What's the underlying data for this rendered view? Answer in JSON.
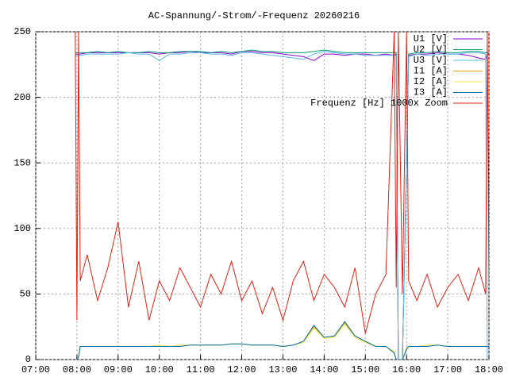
{
  "chart_data": {
    "type": "line",
    "title": "AC-Spannung/-Strom/-Frequenz 20260216",
    "x": [
      7.96,
      8.0,
      8.04,
      8.08,
      8.25,
      8.5,
      8.75,
      9.0,
      9.25,
      9.5,
      9.75,
      10.0,
      10.25,
      10.5,
      10.75,
      11.0,
      11.25,
      11.5,
      11.75,
      12.0,
      12.25,
      12.5,
      12.75,
      13.0,
      13.25,
      13.5,
      13.75,
      14.0,
      14.25,
      14.5,
      14.75,
      15.0,
      15.25,
      15.5,
      15.7,
      15.75,
      15.8,
      15.9,
      16.0,
      16.05,
      16.25,
      16.5,
      16.75,
      17.0,
      17.25,
      17.5,
      17.75,
      17.92,
      17.96,
      18.0
    ],
    "xlim": [
      7,
      18
    ],
    "xticks": [
      {
        "value": 7,
        "label": "07:00"
      },
      {
        "value": 8,
        "label": "08:00"
      },
      {
        "value": 9,
        "label": "09:00"
      },
      {
        "value": 10,
        "label": "10:00"
      },
      {
        "value": 11,
        "label": "11:00"
      },
      {
        "value": 12,
        "label": "12:00"
      },
      {
        "value": 13,
        "label": "13:00"
      },
      {
        "value": 14,
        "label": "14:00"
      },
      {
        "value": 15,
        "label": "15:00"
      },
      {
        "value": 16,
        "label": "16:00"
      },
      {
        "value": 17,
        "label": "17:00"
      },
      {
        "value": 18,
        "label": "18:00"
      }
    ],
    "ylim": [
      0,
      250
    ],
    "yticks": [
      0,
      50,
      100,
      150,
      200,
      250
    ],
    "grid": true,
    "legend": "top-right",
    "series": [
      {
        "name": "U1 [V]",
        "color": "#9400d3",
        "values": [
          233,
          233,
          233,
          233,
          234,
          234,
          234,
          234,
          234,
          234,
          234,
          233,
          234,
          234,
          235,
          234,
          234,
          234,
          233,
          235,
          235,
          234,
          234,
          233,
          232,
          231,
          228,
          233,
          233,
          232,
          233,
          233,
          232,
          233,
          232,
          233,
          0,
          0,
          150,
          232,
          233,
          233,
          234,
          233,
          233,
          232,
          230,
          229,
          233,
          233
        ]
      },
      {
        "name": "U2 [V]",
        "color": "#009e73",
        "values": [
          234,
          234,
          234,
          234,
          234,
          235,
          234,
          235,
          234,
          234,
          235,
          234,
          234,
          235,
          235,
          235,
          234,
          235,
          234,
          235,
          236,
          235,
          235,
          234,
          234,
          234,
          235,
          236,
          235,
          234,
          234,
          234,
          234,
          234,
          234,
          234,
          0,
          0,
          150,
          233,
          234,
          234,
          235,
          234,
          234,
          235,
          235,
          234,
          234,
          234
        ]
      },
      {
        "name": "U3 [V]",
        "color": "#56b4e9",
        "values": [
          232,
          232,
          232,
          232,
          233,
          233,
          233,
          233,
          234,
          233,
          233,
          228,
          233,
          233,
          234,
          234,
          233,
          233,
          232,
          234,
          234,
          233,
          232,
          231,
          230,
          229,
          233,
          235,
          234,
          233,
          233,
          232,
          232,
          232,
          232,
          232,
          0,
          0,
          150,
          231,
          233,
          232,
          233,
          233,
          233,
          234,
          234,
          233,
          0,
          0
        ]
      },
      {
        "name": "I1 [A]",
        "color": "#e69f00",
        "values": [
          0,
          0,
          2,
          10,
          10,
          10,
          10,
          10,
          10,
          10,
          10,
          10,
          10,
          10,
          11,
          11,
          11,
          11,
          12,
          12,
          11,
          11,
          11,
          10,
          11,
          14,
          25,
          17,
          18,
          28,
          18,
          14,
          10,
          10,
          5,
          0,
          0,
          0,
          8,
          10,
          10,
          10,
          11,
          10,
          10,
          10,
          10,
          10,
          10,
          10
        ]
      },
      {
        "name": "I2 [A]",
        "color": "#f0e442",
        "values": [
          0,
          0,
          2,
          10,
          10,
          10,
          10,
          10,
          10,
          10,
          10,
          11,
          10,
          11,
          11,
          11,
          11,
          11,
          12,
          12,
          11,
          11,
          11,
          10,
          11,
          13,
          24,
          16,
          17,
          27,
          17,
          13,
          10,
          10,
          6,
          0,
          0,
          0,
          9,
          10,
          10,
          11,
          11,
          10,
          10,
          10,
          10,
          10,
          10,
          10
        ]
      },
      {
        "name": "I3 [A]",
        "color": "#0072b2",
        "values": [
          0,
          0,
          2,
          10,
          10,
          10,
          10,
          10,
          10,
          10,
          10,
          10,
          10,
          10,
          11,
          11,
          11,
          11,
          12,
          12,
          11,
          11,
          11,
          10,
          11,
          14,
          26,
          17,
          18,
          29,
          18,
          14,
          10,
          10,
          5,
          0,
          0,
          0,
          8,
          10,
          10,
          10,
          11,
          10,
          10,
          10,
          10,
          10,
          10,
          10
        ]
      },
      {
        "name": "Frequenz [Hz] 1000x Zoom",
        "color": "#e51e10",
        "values": [
          250,
          30,
          250,
          60,
          80,
          45,
          70,
          105,
          40,
          75,
          30,
          60,
          45,
          70,
          55,
          40,
          65,
          50,
          75,
          45,
          60,
          35,
          55,
          30,
          60,
          75,
          45,
          65,
          55,
          40,
          70,
          20,
          50,
          65,
          250,
          55,
          250,
          50,
          250,
          60,
          45,
          65,
          40,
          55,
          65,
          45,
          70,
          50,
          250,
          60
        ]
      }
    ]
  }
}
